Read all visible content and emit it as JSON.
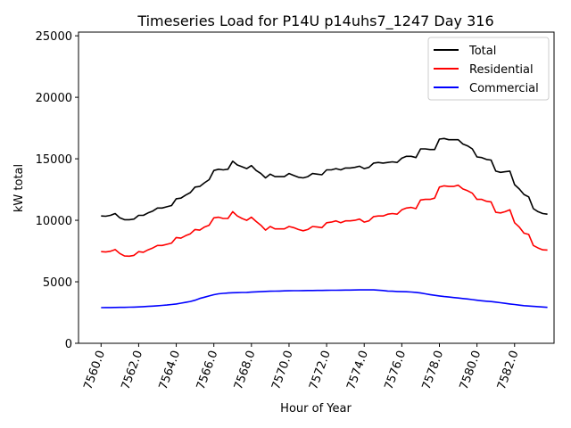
{
  "chart_data": {
    "type": "line",
    "title": "Timeseries Load for P14U p14uhs7_1247  Day 316",
    "xlabel": "Hour of Year",
    "ylabel": "kW total",
    "xlim": [
      7558.8,
      7584.1
    ],
    "ylim": [
      0,
      25300
    ],
    "xticks": [
      7560,
      7562,
      7564,
      7566,
      7568,
      7570,
      7572,
      7574,
      7576,
      7578,
      7580,
      7582
    ],
    "xtick_labels": [
      "7560.0",
      "7562.0",
      "7564.0",
      "7566.0",
      "7568.0",
      "7570.0",
      "7572.0",
      "7574.0",
      "7576.0",
      "7578.0",
      "7580.0",
      "7582.0"
    ],
    "yticks": [
      0,
      5000,
      10000,
      15000,
      20000,
      25000
    ],
    "ytick_labels": [
      "0",
      "5000",
      "10000",
      "15000",
      "20000",
      "25000"
    ],
    "legend_position": "top-right",
    "x": [
      7560,
      7560.25,
      7560.5,
      7560.75,
      7561,
      7561.25,
      7561.5,
      7561.75,
      7562,
      7562.25,
      7562.5,
      7562.75,
      7563,
      7563.25,
      7563.5,
      7563.75,
      7564,
      7564.25,
      7564.5,
      7564.75,
      7565,
      7565.25,
      7565.5,
      7565.75,
      7566,
      7566.25,
      7566.5,
      7566.75,
      7567,
      7567.25,
      7567.5,
      7567.75,
      7568,
      7568.25,
      7568.5,
      7568.75,
      7569,
      7569.25,
      7569.5,
      7569.75,
      7570,
      7570.25,
      7570.5,
      7570.75,
      7571,
      7571.25,
      7571.5,
      7571.75,
      7572,
      7572.25,
      7572.5,
      7572.75,
      7573,
      7573.25,
      7573.5,
      7573.75,
      7574,
      7574.25,
      7574.5,
      7574.75,
      7575,
      7575.25,
      7575.5,
      7575.75,
      7576,
      7576.25,
      7576.5,
      7576.75,
      7577,
      7577.25,
      7577.5,
      7577.75,
      7578,
      7578.25,
      7578.5,
      7578.75,
      7579,
      7579.25,
      7579.5,
      7579.75,
      7580,
      7580.25,
      7580.5,
      7580.75,
      7581,
      7581.25,
      7581.5,
      7581.75,
      7582,
      7582.25,
      7582.5,
      7582.75,
      7583,
      7583.25,
      7583.5,
      7583.75
    ],
    "series": [
      {
        "name": "Total",
        "color": "#000000",
        "values": [
          10350,
          10330,
          10400,
          10550,
          10200,
          10050,
          10050,
          10100,
          10400,
          10400,
          10600,
          10750,
          11000,
          11000,
          11100,
          11200,
          11750,
          11800,
          12050,
          12250,
          12700,
          12750,
          13050,
          13300,
          14050,
          14150,
          14100,
          14150,
          14800,
          14500,
          14350,
          14200,
          14450,
          14050,
          13800,
          13450,
          13750,
          13550,
          13550,
          13550,
          13800,
          13650,
          13500,
          13450,
          13550,
          13800,
          13750,
          13700,
          14100,
          14100,
          14200,
          14100,
          14250,
          14250,
          14300,
          14400,
          14200,
          14300,
          14650,
          14700,
          14650,
          14700,
          14750,
          14700,
          15050,
          15200,
          15200,
          15100,
          15800,
          15800,
          15750,
          15750,
          16600,
          16650,
          16550,
          16550,
          16550,
          16200,
          16050,
          15800,
          15150,
          15100,
          14950,
          14900,
          14000,
          13900,
          13950,
          14000,
          12900,
          12550,
          12100,
          11900,
          10950,
          10700,
          10550,
          10500
        ]
      },
      {
        "name": "Residential",
        "color": "#ff0000",
        "values": [
          7450,
          7420,
          7480,
          7620,
          7300,
          7100,
          7080,
          7150,
          7450,
          7400,
          7600,
          7750,
          7950,
          7950,
          8050,
          8150,
          8600,
          8550,
          8750,
          8900,
          9250,
          9200,
          9450,
          9600,
          10200,
          10250,
          10150,
          10150,
          10700,
          10350,
          10150,
          10000,
          10250,
          9900,
          9600,
          9200,
          9500,
          9300,
          9300,
          9300,
          9500,
          9400,
          9250,
          9150,
          9250,
          9500,
          9450,
          9400,
          9800,
          9850,
          9950,
          9800,
          9950,
          9950,
          10000,
          10100,
          9850,
          9950,
          10300,
          10350,
          10350,
          10500,
          10550,
          10500,
          10850,
          11000,
          11050,
          10950,
          11650,
          11700,
          11700,
          11800,
          12700,
          12800,
          12750,
          12750,
          12850,
          12550,
          12400,
          12200,
          11700,
          11700,
          11550,
          11500,
          10650,
          10600,
          10700,
          10850,
          9800,
          9450,
          8950,
          8850,
          7950,
          7750,
          7600,
          7580
        ]
      },
      {
        "name": "Commercial",
        "color": "#0000ff",
        "values": [
          2900,
          2905,
          2910,
          2915,
          2920,
          2925,
          2935,
          2945,
          2960,
          2980,
          3000,
          3020,
          3050,
          3080,
          3110,
          3150,
          3200,
          3260,
          3330,
          3400,
          3500,
          3650,
          3750,
          3850,
          3950,
          4020,
          4060,
          4090,
          4110,
          4120,
          4130,
          4140,
          4160,
          4180,
          4200,
          4220,
          4230,
          4240,
          4250,
          4260,
          4270,
          4275,
          4280,
          4285,
          4290,
          4295,
          4300,
          4300,
          4305,
          4310,
          4315,
          4320,
          4325,
          4330,
          4335,
          4340,
          4345,
          4345,
          4340,
          4320,
          4290,
          4250,
          4230,
          4210,
          4200,
          4190,
          4170,
          4140,
          4090,
          4020,
          3960,
          3900,
          3850,
          3800,
          3760,
          3720,
          3680,
          3640,
          3600,
          3550,
          3500,
          3460,
          3420,
          3390,
          3350,
          3300,
          3250,
          3200,
          3150,
          3100,
          3060,
          3030,
          3000,
          2980,
          2950,
          2920
        ]
      }
    ]
  }
}
